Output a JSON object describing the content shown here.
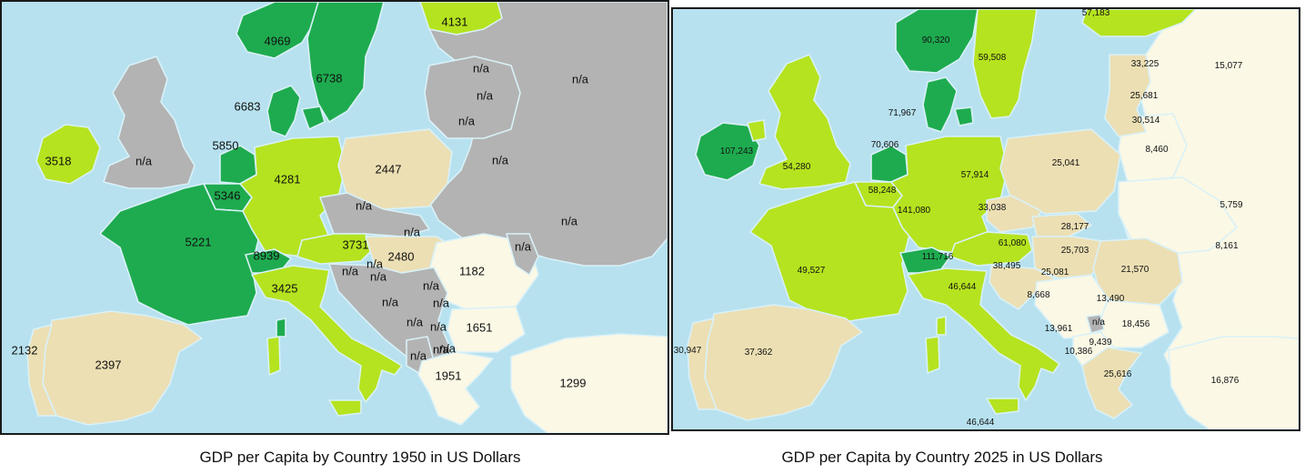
{
  "colors": {
    "sea": "#b7e1ef",
    "dark_green": "#1eab4f",
    "light_green": "#b5e31f",
    "tan": "#ecdfb4",
    "cream": "#fbf8e5",
    "gray": "#b3b3b3"
  },
  "map1950": {
    "caption": "GDP per Capita by Country 1950 in US Dollars",
    "labels": [
      "4969",
      "6738",
      "4131",
      "6683",
      "5850",
      "3518",
      "n/a",
      "4281",
      "2447",
      "5346",
      "5221",
      "n/a",
      "n/a",
      "3731",
      "2480",
      "8939",
      "n/a",
      "n/a",
      "3425",
      "1182",
      "n/a",
      "n/a",
      "n/a",
      "n/a",
      "n/a",
      "n/a",
      "1651",
      "n/a",
      "n/a",
      "2132",
      "2397",
      "1951",
      "1299",
      "n/a",
      "n/a",
      "n/a",
      "n/a",
      "n/a",
      "n/a",
      "n/a",
      "n/a"
    ]
  },
  "map2025": {
    "caption": "GDP per Capita by Country 2025 in US Dollars",
    "labels": [
      "90,320",
      "59,508",
      "57,183",
      "33,225",
      "15,077",
      "25,681",
      "71,967",
      "30,514",
      "70,606",
      "107,243",
      "54,280",
      "8,460",
      "57,914",
      "25,041",
      "58,248",
      "141,080",
      "33,038",
      "28,177",
      "5,759",
      "49,527",
      "61,080",
      "25,703",
      "8,161",
      "111,716",
      "38,495",
      "25,081",
      "21,570",
      "46,644",
      "8,668",
      "13,490",
      "n/a",
      "18,456",
      "13,961",
      "9,439",
      "10,386",
      "30,947",
      "37,362",
      "25,616",
      "16,876",
      "46,644"
    ]
  }
}
